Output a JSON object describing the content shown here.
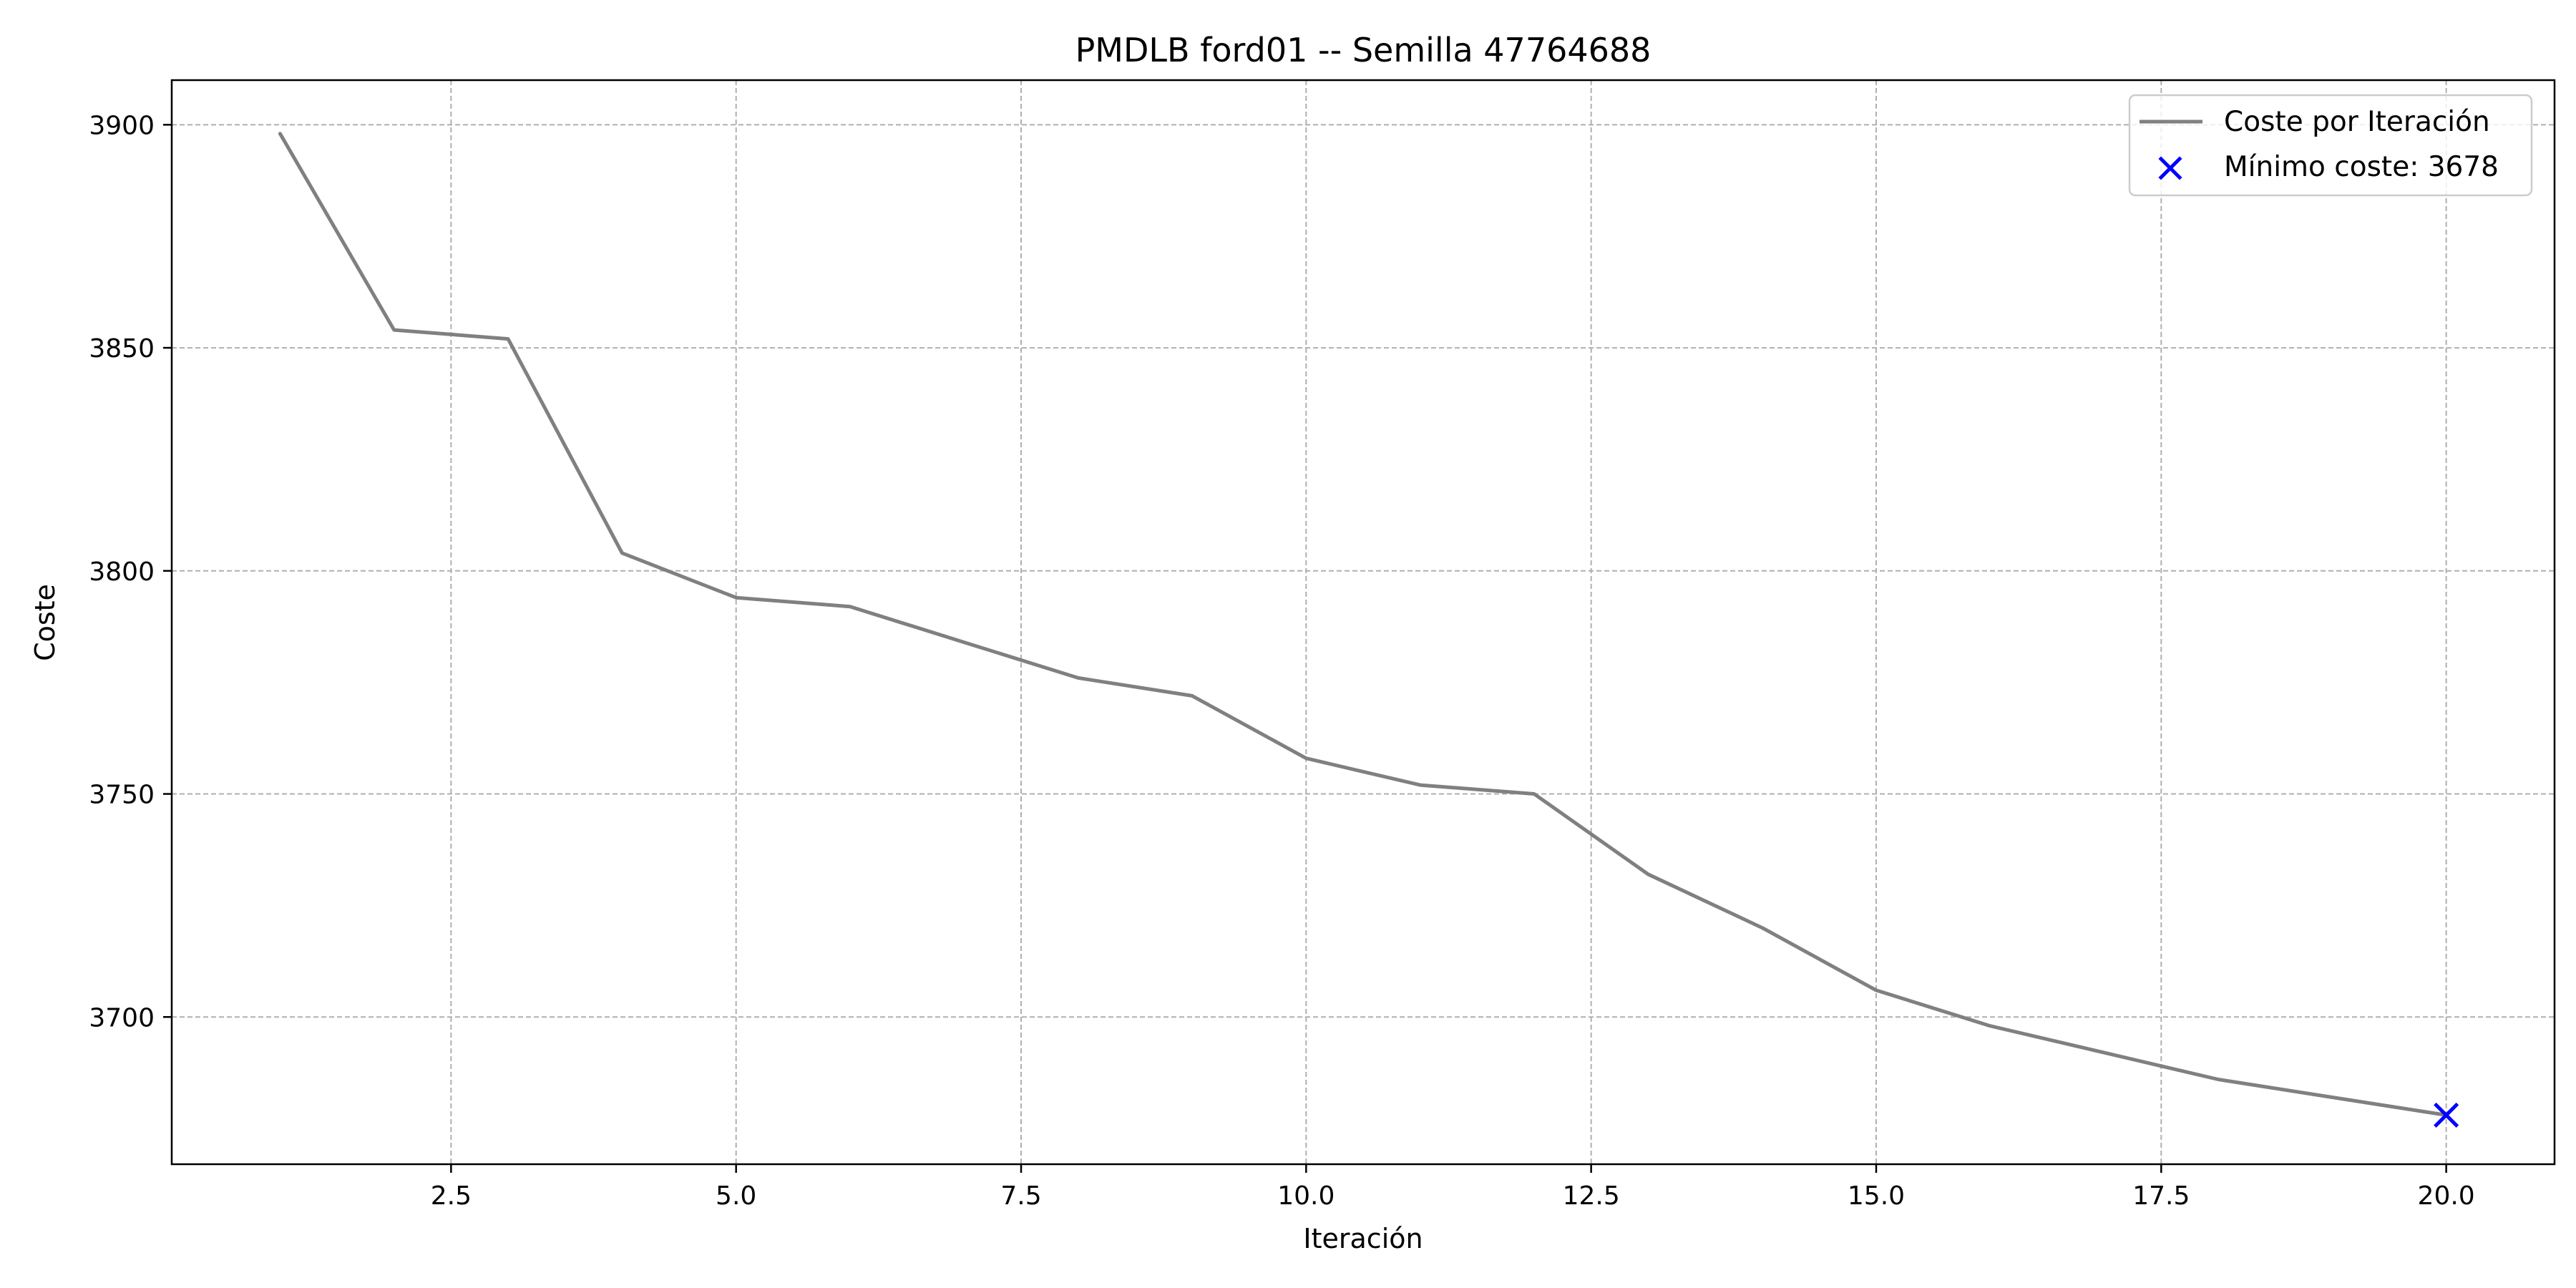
{
  "chart_data": {
    "type": "line",
    "title": "PMDLB ford01 -- Semilla 47764688",
    "xlabel": "Iteración",
    "ylabel": "Coste",
    "xlim": [
      0.05,
      20.95
    ],
    "ylim": [
      3667,
      3910
    ],
    "xticks": [
      2.5,
      5.0,
      7.5,
      10.0,
      12.5,
      15.0,
      17.5,
      20.0
    ],
    "xtick_labels": [
      "2.5",
      "5.0",
      "7.5",
      "10.0",
      "12.5",
      "15.0",
      "17.5",
      "20.0"
    ],
    "yticks": [
      3700,
      3750,
      3800,
      3850,
      3900
    ],
    "ytick_labels": [
      "3700",
      "3750",
      "3800",
      "3850",
      "3900"
    ],
    "grid": true,
    "legend_position": "top-right",
    "series": [
      {
        "name": "Coste por Iteración",
        "color": "#808080",
        "x": [
          1,
          2,
          3,
          4,
          5,
          6,
          7,
          8,
          9,
          10,
          11,
          12,
          13,
          14,
          15,
          16,
          17,
          18,
          19,
          20
        ],
        "y": [
          3898,
          3854,
          3852,
          3804,
          3794,
          3792,
          3784,
          3776,
          3772,
          3758,
          3752,
          3750,
          3732,
          3720,
          3706,
          3698,
          3692,
          3686,
          3682,
          3678
        ]
      }
    ],
    "markers": [
      {
        "name": "Mínimo coste: 3678",
        "color": "#0000ff",
        "symbol": "x",
        "x": 20,
        "y": 3678
      }
    ]
  }
}
